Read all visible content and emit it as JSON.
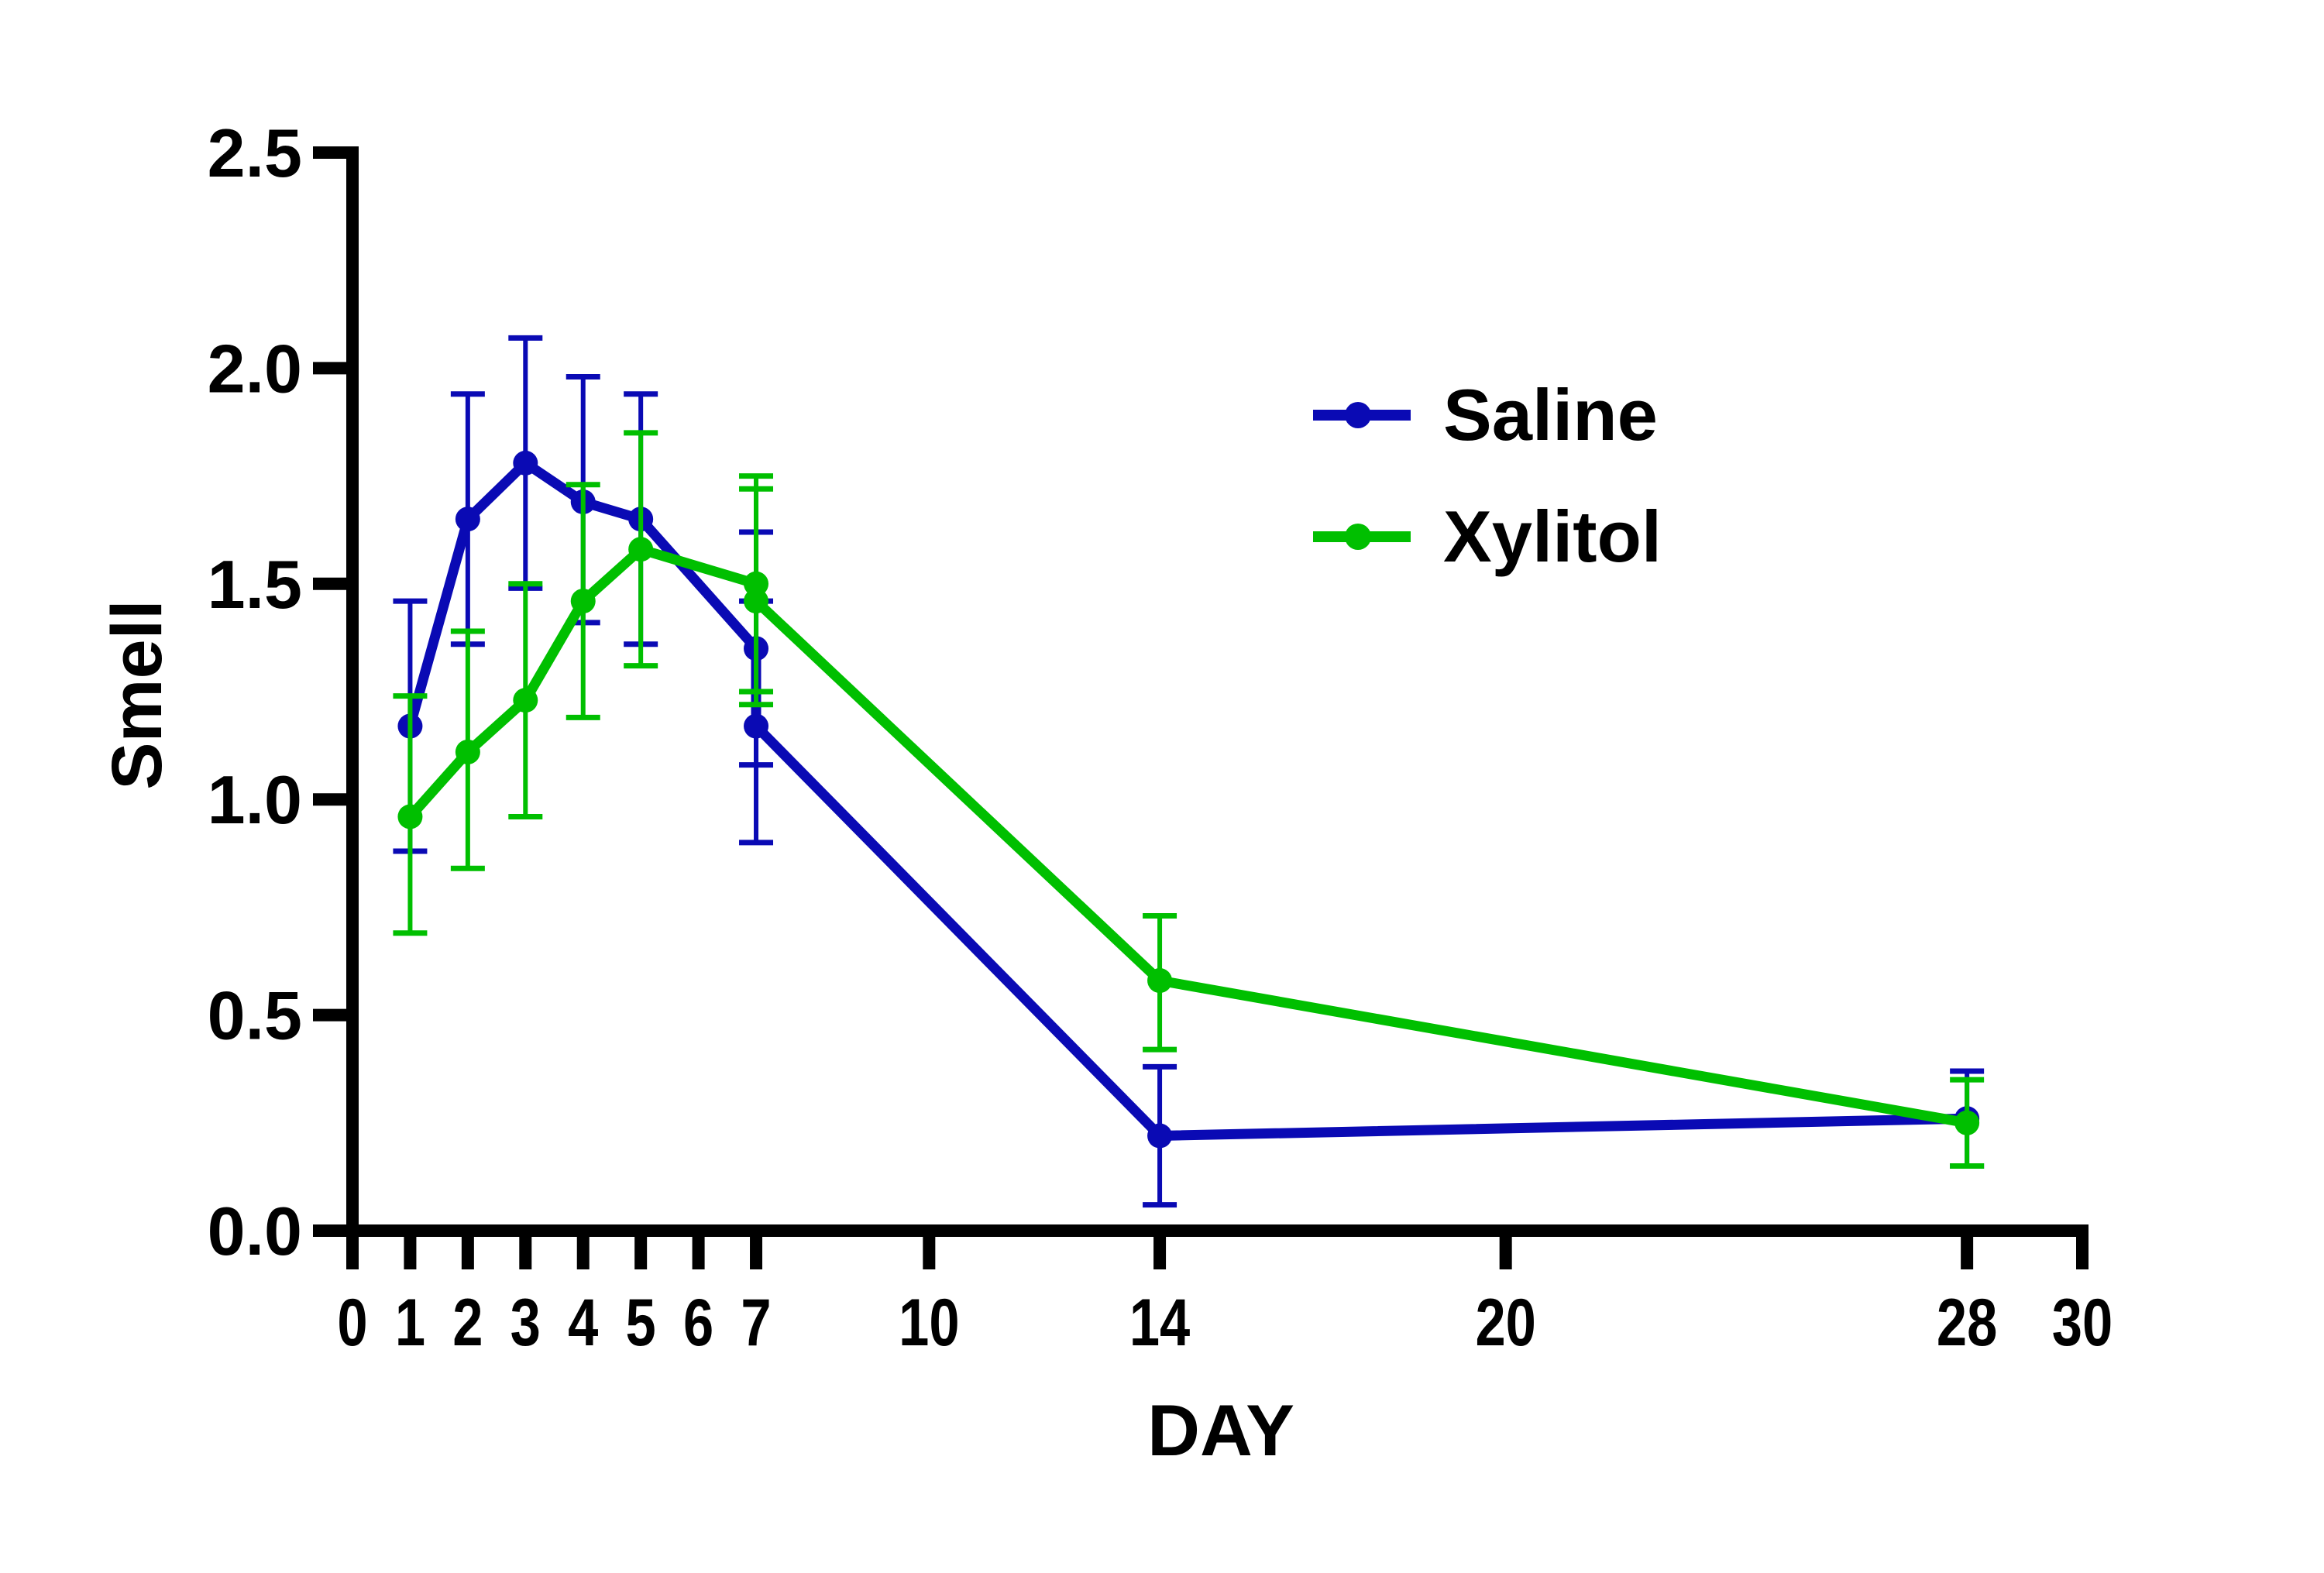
{
  "chart_data": {
    "type": "line",
    "title": "",
    "xlabel": "DAY",
    "ylabel": "Smell",
    "xlim": [
      0,
      30
    ],
    "ylim": [
      0,
      2.5
    ],
    "grid": false,
    "legend_position": "upper-right (inside plot)",
    "x_ticks": [
      0,
      1,
      2,
      3,
      4,
      5,
      6,
      7,
      10,
      14,
      20,
      28,
      30
    ],
    "x_tick_labels": [
      "0",
      "1",
      "2",
      "3",
      "4",
      "5",
      "6",
      "7",
      "10",
      "14",
      "20",
      "28",
      "30"
    ],
    "y_ticks": [
      0.0,
      0.5,
      1.0,
      1.5,
      2.0,
      2.5
    ],
    "y_tick_labels": [
      "0.0",
      "0.5",
      "1.0",
      "1.5",
      "2.0",
      "2.5"
    ],
    "error_bars": true,
    "series": [
      {
        "name": "Saline",
        "color": "#0A0AB4",
        "x": [
          1,
          2,
          3,
          4,
          5,
          7,
          7,
          14,
          28
        ],
        "y": [
          1.17,
          1.65,
          1.78,
          1.69,
          1.65,
          1.35,
          1.17,
          0.22,
          0.26
        ],
        "err_upper": [
          1.46,
          1.94,
          2.07,
          1.98,
          1.94,
          1.62,
          1.46,
          0.38,
          0.37
        ],
        "err_lower": [
          0.88,
          1.36,
          1.49,
          1.41,
          1.36,
          1.08,
          0.9,
          0.06,
          0.15
        ]
      },
      {
        "name": "Xylitol",
        "color": "#00BF00",
        "x": [
          1,
          2,
          3,
          4,
          5,
          7,
          7,
          14,
          28
        ],
        "y": [
          0.96,
          1.11,
          1.23,
          1.46,
          1.58,
          1.5,
          1.46,
          0.58,
          0.25
        ],
        "err_upper": [
          1.24,
          1.39,
          1.5,
          1.73,
          1.85,
          1.75,
          1.72,
          0.73,
          0.35
        ],
        "err_lower": [
          0.69,
          0.84,
          0.96,
          1.19,
          1.31,
          1.25,
          1.22,
          0.42,
          0.15
        ]
      }
    ]
  },
  "axes": {
    "x_label": "DAY",
    "y_label": "Smell"
  },
  "legend": {
    "items": [
      {
        "label": "Saline",
        "color": "#0A0AB4"
      },
      {
        "label": "Xylitol",
        "color": "#00BF00"
      }
    ]
  }
}
